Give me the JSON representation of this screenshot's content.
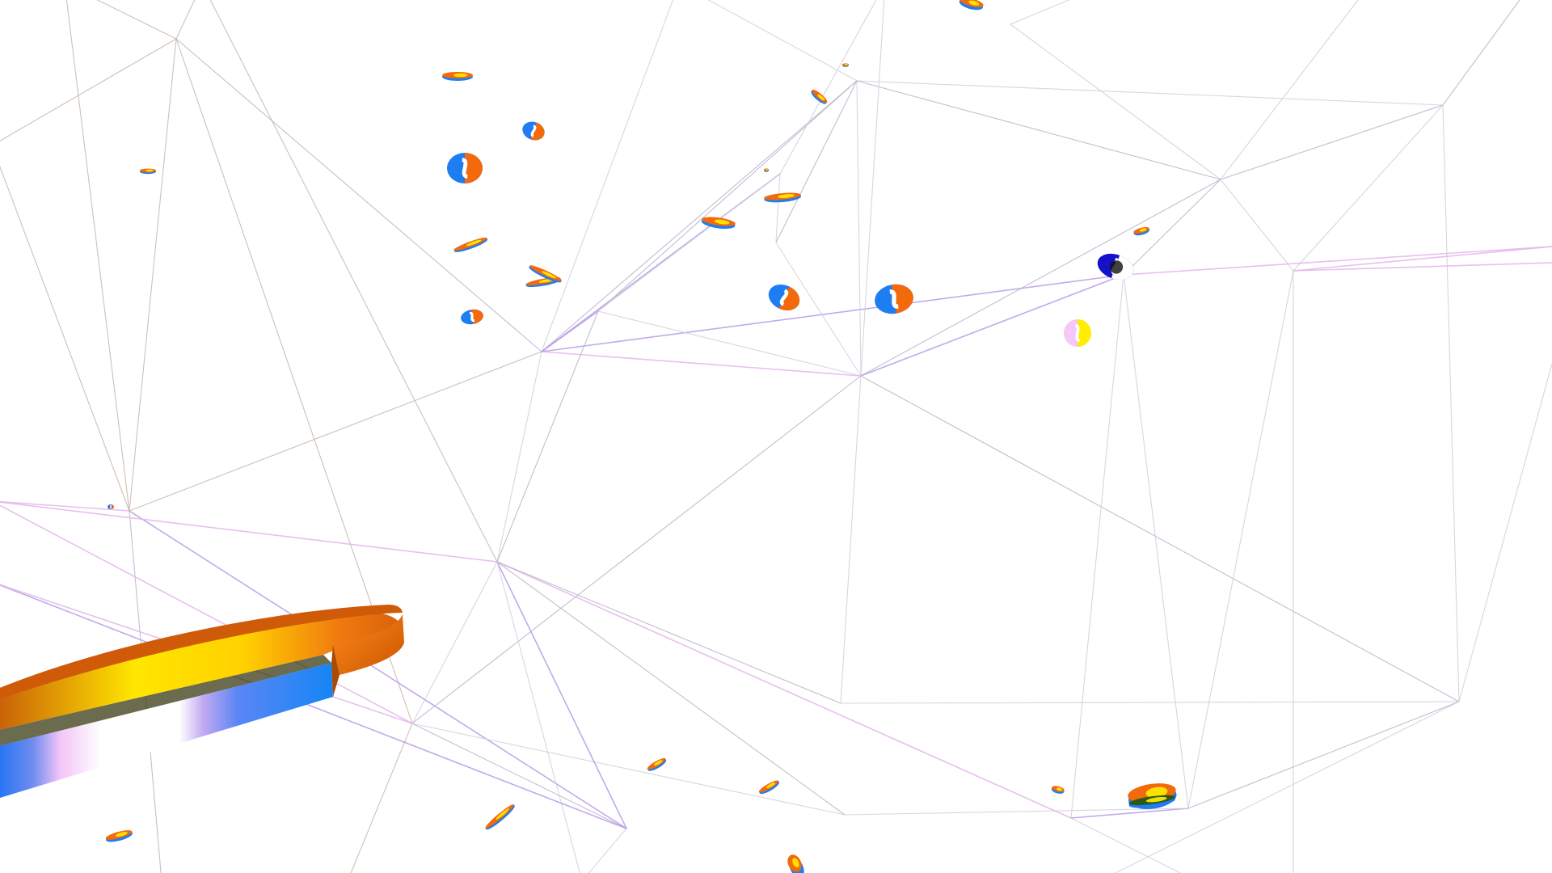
{
  "scene": {
    "description_visible_text": "",
    "background_color": "#ffffff",
    "line_colors": [
      "#b9b3c8",
      "#c7b6a8",
      "#b99be6",
      "#e3b5ea",
      "#cfcfdc"
    ],
    "token_colors": {
      "blue": "#1f7df2",
      "orange": "#f26a0c",
      "yellow": "#ffee00",
      "navy": "#1411c8",
      "pink": "#f4c8f8"
    },
    "foreground_object": "coin-logo-ring",
    "token_count": 28
  }
}
